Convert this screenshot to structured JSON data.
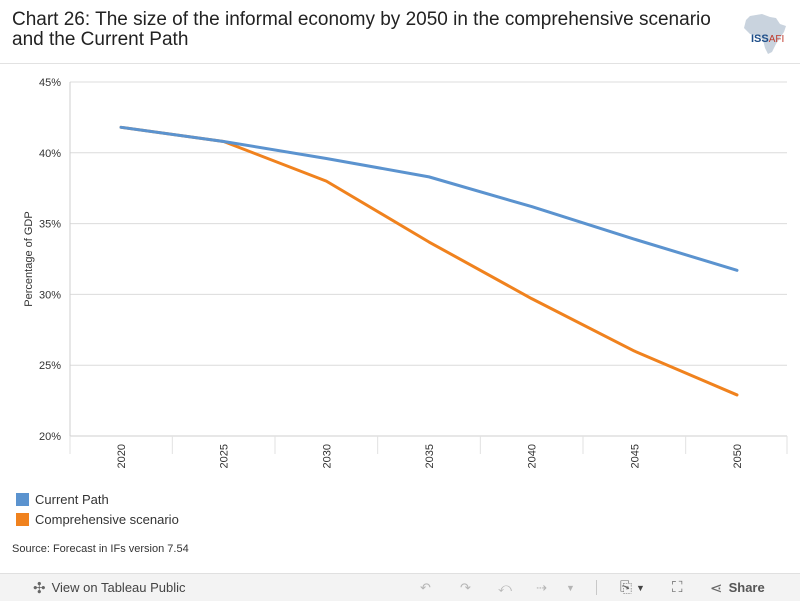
{
  "title": "Chart 26: The size of the informal economy by 2050 in the comprehensive scenario and the Current Path",
  "logo": {
    "main": "ISS",
    "sub": "AFI"
  },
  "colors": {
    "current_path": "#5b93cf",
    "comprehensive": "#f0821e",
    "grid": "#dcdcdc",
    "text": "#333333"
  },
  "chart_data": {
    "type": "line",
    "title": "Chart 26: The size of the informal economy by 2050 in the comprehensive scenario and the Current Path",
    "xlabel": "",
    "ylabel": "Percentage of GDP",
    "x": [
      "2020",
      "2025",
      "2030",
      "2035",
      "2040",
      "2045",
      "2050"
    ],
    "ylim": [
      20,
      45
    ],
    "yticks": [
      20,
      25,
      30,
      35,
      40,
      45
    ],
    "ytick_labels": [
      "20%",
      "25%",
      "30%",
      "35%",
      "40%",
      "45%"
    ],
    "grid": true,
    "legend": "bottom-left",
    "series": [
      {
        "name": "Current Path",
        "color": "#5b93cf",
        "values": [
          41.8,
          40.8,
          39.6,
          38.3,
          36.2,
          33.9,
          31.7
        ]
      },
      {
        "name": "Comprehensive scenario",
        "color": "#f0821e",
        "values": [
          41.8,
          40.8,
          38.0,
          33.7,
          29.7,
          26.0,
          22.9
        ]
      }
    ]
  },
  "legend": {
    "items": [
      {
        "label": "Current Path",
        "color": "#5b93cf"
      },
      {
        "label": "Comprehensive scenario",
        "color": "#f0821e"
      }
    ]
  },
  "source": "Source: Forecast in IFs version 7.54",
  "toolbar": {
    "view_label": "View on Tableau Public",
    "share_label": "Share"
  }
}
